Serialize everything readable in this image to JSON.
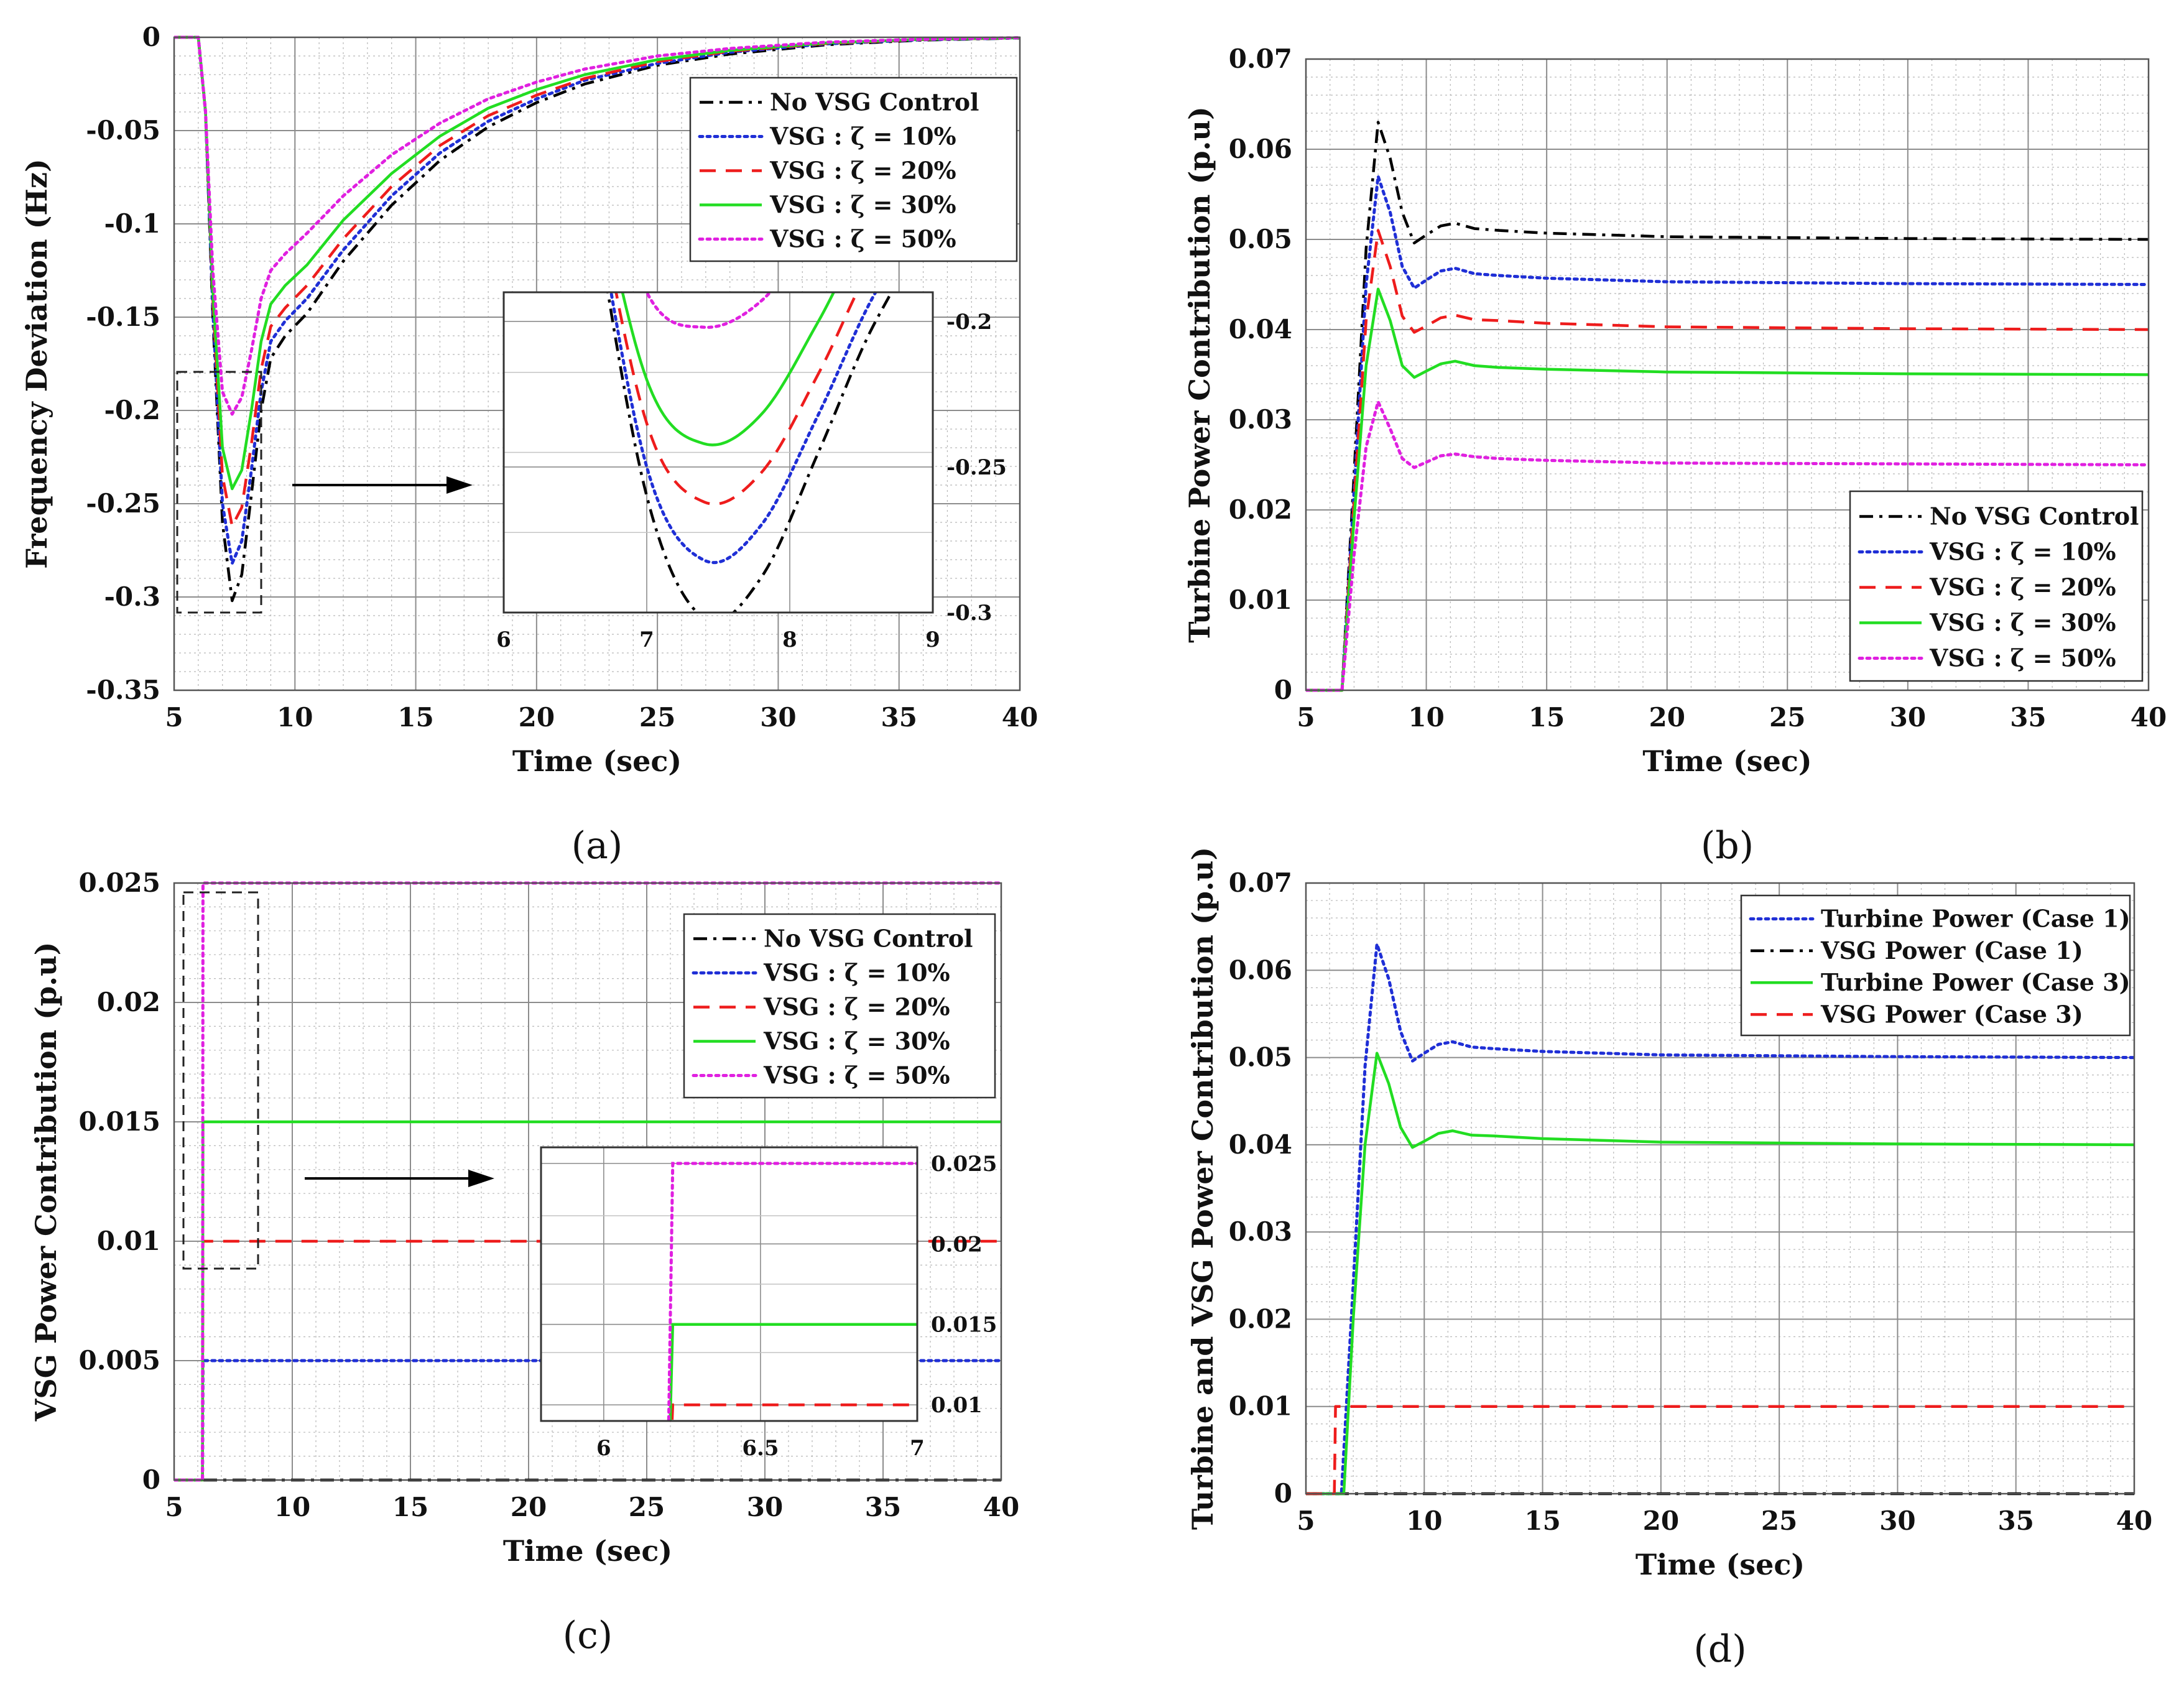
{
  "colors": {
    "no_vsg": "#000000",
    "zeta10": "#1f2fd6",
    "zeta20": "#ee1c1c",
    "zeta30": "#22dd22",
    "zeta50": "#e020e0"
  },
  "chart_data": [
    {
      "id": "a",
      "type": "line",
      "caption": "(a)",
      "xlabel": "Time (sec)",
      "ylabel": "Frequency Deviation (Hz)",
      "xlim": [
        5,
        40
      ],
      "ylim": [
        -0.35,
        0
      ],
      "xticks": [
        5,
        10,
        15,
        20,
        25,
        30,
        35,
        40
      ],
      "yticks": [
        -0.35,
        -0.3,
        -0.25,
        -0.2,
        -0.15,
        -0.1,
        -0.05,
        0
      ],
      "ytick_labels": [
        "-0.35",
        "-0.3",
        "-0.25",
        "-0.2",
        "-0.15",
        "-0.1",
        "-0.05",
        "0"
      ],
      "grid": true,
      "legend": "top-right",
      "series": [
        {
          "name": "No VSG Control",
          "color": "#000000",
          "style": "dashdot",
          "x": [
            5,
            6,
            6.3,
            6.6,
            7,
            7.4,
            7.8,
            8.2,
            8.6,
            9,
            9.6,
            10.5,
            12,
            14,
            16,
            18,
            20,
            22,
            25,
            28,
            32,
            36,
            40
          ],
          "y": [
            0,
            0,
            -0.04,
            -0.15,
            -0.26,
            -0.302,
            -0.288,
            -0.245,
            -0.2,
            -0.172,
            -0.16,
            -0.148,
            -0.12,
            -0.09,
            -0.066,
            -0.048,
            -0.035,
            -0.025,
            -0.015,
            -0.009,
            -0.004,
            -0.0015,
            -0.0004
          ]
        },
        {
          "name": "VSG : ζ = 10%",
          "color": "#1f2fd6",
          "style": "dotted",
          "x": [
            5,
            6,
            6.3,
            6.6,
            7,
            7.4,
            7.8,
            8.2,
            8.6,
            9,
            9.6,
            10.5,
            12,
            14,
            16,
            18,
            20,
            22,
            25,
            28,
            32,
            36,
            40
          ],
          "y": [
            0,
            0,
            -0.04,
            -0.145,
            -0.25,
            -0.282,
            -0.27,
            -0.232,
            -0.19,
            -0.163,
            -0.152,
            -0.14,
            -0.114,
            -0.085,
            -0.062,
            -0.045,
            -0.033,
            -0.023,
            -0.014,
            -0.008,
            -0.0035,
            -0.0013,
            -0.0003
          ]
        },
        {
          "name": "VSG : ζ = 20%",
          "color": "#ee1c1c",
          "style": "dashed",
          "x": [
            5,
            6,
            6.3,
            6.6,
            7,
            7.4,
            7.8,
            8.2,
            8.6,
            9,
            9.6,
            10.5,
            12,
            14,
            16,
            18,
            20,
            22,
            25,
            28,
            32,
            36,
            40
          ],
          "y": [
            0,
            0,
            -0.04,
            -0.14,
            -0.235,
            -0.262,
            -0.252,
            -0.218,
            -0.178,
            -0.155,
            -0.145,
            -0.133,
            -0.108,
            -0.08,
            -0.058,
            -0.042,
            -0.031,
            -0.022,
            -0.013,
            -0.0075,
            -0.0033,
            -0.0012,
            -0.0003
          ]
        },
        {
          "name": "VSG : ζ = 30%",
          "color": "#22dd22",
          "style": "solid",
          "x": [
            5,
            6,
            6.3,
            6.6,
            7,
            7.4,
            7.8,
            8.2,
            8.6,
            9,
            9.6,
            10.5,
            12,
            14,
            16,
            18,
            20,
            22,
            25,
            28,
            32,
            36,
            40
          ],
          "y": [
            0,
            0,
            -0.04,
            -0.135,
            -0.22,
            -0.242,
            -0.232,
            -0.2,
            -0.163,
            -0.143,
            -0.133,
            -0.122,
            -0.098,
            -0.073,
            -0.053,
            -0.038,
            -0.028,
            -0.02,
            -0.012,
            -0.007,
            -0.003,
            -0.0011,
            -0.0003
          ]
        },
        {
          "name": "VSG : ζ = 50%",
          "color": "#e020e0",
          "style": "dotted",
          "x": [
            5,
            6,
            6.3,
            6.6,
            7,
            7.4,
            7.8,
            8.2,
            8.6,
            9,
            9.6,
            10.5,
            12,
            14,
            16,
            18,
            20,
            22,
            25,
            28,
            32,
            36,
            40
          ],
          "y": [
            0,
            0,
            -0.04,
            -0.125,
            -0.19,
            -0.202,
            -0.193,
            -0.168,
            -0.14,
            -0.125,
            -0.116,
            -0.105,
            -0.085,
            -0.063,
            -0.046,
            -0.033,
            -0.024,
            -0.017,
            -0.01,
            -0.006,
            -0.0026,
            -0.001,
            -0.0002
          ]
        }
      ],
      "inset": {
        "xlim": [
          6,
          9
        ],
        "ylim": [
          -0.3,
          -0.19
        ],
        "xticks": [
          6,
          7,
          8,
          9
        ],
        "yticks": [
          -0.3,
          -0.25,
          -0.2
        ],
        "ytick_labels": [
          "-0.3",
          "-0.25",
          "-0.2"
        ],
        "yticks_side": "right"
      }
    },
    {
      "id": "b",
      "type": "line",
      "caption": "(b)",
      "xlabel": "Time (sec)",
      "ylabel": "Turbine Power Contribution (p.u)",
      "xlim": [
        5,
        40
      ],
      "ylim": [
        0,
        0.07
      ],
      "xticks": [
        5,
        10,
        15,
        20,
        25,
        30,
        35,
        40
      ],
      "yticks": [
        0,
        0.01,
        0.02,
        0.03,
        0.04,
        0.05,
        0.06,
        0.07
      ],
      "ytick_labels": [
        "0",
        "0.01",
        "0.02",
        "0.03",
        "0.04",
        "0.05",
        "0.06",
        "0.07"
      ],
      "grid": true,
      "legend": "bottom-right",
      "series": [
        {
          "name": "No VSG Control",
          "color": "#000000",
          "style": "dashdot",
          "x": [
            5,
            6.5,
            7,
            7.5,
            8,
            8.5,
            9,
            9.5,
            10,
            10.6,
            11.2,
            12,
            13,
            15,
            20,
            30,
            40
          ],
          "y": [
            0,
            0,
            0.024,
            0.049,
            0.063,
            0.059,
            0.053,
            0.0496,
            0.0505,
            0.0515,
            0.0518,
            0.0512,
            0.051,
            0.0507,
            0.0503,
            0.0501,
            0.05
          ]
        },
        {
          "name": "VSG : ζ = 10%",
          "color": "#1f2fd6",
          "style": "dotted",
          "x": [
            5,
            6.5,
            7,
            7.5,
            8,
            8.5,
            9,
            9.5,
            10,
            10.6,
            11.2,
            12,
            13,
            15,
            20,
            30,
            40
          ],
          "y": [
            0,
            0,
            0.022,
            0.045,
            0.057,
            0.053,
            0.047,
            0.0446,
            0.0455,
            0.0465,
            0.0468,
            0.0462,
            0.046,
            0.0457,
            0.0453,
            0.0451,
            0.045
          ]
        },
        {
          "name": "VSG : ζ = 20%",
          "color": "#ee1c1c",
          "style": "dashed",
          "x": [
            5,
            6.5,
            7,
            7.5,
            8,
            8.5,
            9,
            9.5,
            10,
            10.6,
            11.2,
            12,
            13,
            15,
            20,
            30,
            40
          ],
          "y": [
            0,
            0,
            0.021,
            0.041,
            0.051,
            0.047,
            0.0415,
            0.0397,
            0.0404,
            0.0413,
            0.0416,
            0.0411,
            0.041,
            0.0407,
            0.0403,
            0.0401,
            0.04
          ]
        },
        {
          "name": "VSG : ζ = 30%",
          "color": "#22dd22",
          "style": "solid",
          "x": [
            5,
            6.5,
            7,
            7.5,
            8,
            8.5,
            9,
            9.5,
            10,
            10.6,
            11.2,
            12,
            13,
            15,
            20,
            30,
            40
          ],
          "y": [
            0,
            0,
            0.019,
            0.036,
            0.0445,
            0.041,
            0.036,
            0.0347,
            0.0354,
            0.0362,
            0.0365,
            0.036,
            0.0358,
            0.0356,
            0.0353,
            0.0351,
            0.035
          ]
        },
        {
          "name": "VSG : ζ = 50%",
          "color": "#e020e0",
          "style": "dotted",
          "x": [
            5,
            6.5,
            7,
            7.5,
            8,
            8.5,
            9,
            9.5,
            10,
            10.6,
            11.2,
            12,
            13,
            15,
            20,
            30,
            40
          ],
          "y": [
            0,
            0,
            0.015,
            0.027,
            0.032,
            0.029,
            0.0257,
            0.0247,
            0.0253,
            0.026,
            0.0262,
            0.0259,
            0.0257,
            0.0255,
            0.0252,
            0.0251,
            0.025
          ]
        }
      ]
    },
    {
      "id": "c",
      "type": "line",
      "caption": "(c)",
      "xlabel": "Time (sec)",
      "ylabel": "VSG Power Contribution (p.u)",
      "xlim": [
        5,
        40
      ],
      "ylim": [
        0,
        0.025
      ],
      "xticks": [
        5,
        10,
        15,
        20,
        25,
        30,
        35,
        40
      ],
      "yticks": [
        0,
        0.005,
        0.01,
        0.015,
        0.02,
        0.025
      ],
      "ytick_labels": [
        "0",
        "0.005",
        "0.01",
        "0.015",
        "0.02",
        "0.025"
      ],
      "grid": true,
      "legend": "top-right",
      "series": [
        {
          "name": "No VSG Control",
          "color": "#000000",
          "style": "dashdot",
          "x": [
            5,
            40
          ],
          "y": [
            0,
            0
          ]
        },
        {
          "name": "VSG : ζ = 10%",
          "color": "#1f2fd6",
          "style": "dotted",
          "x": [
            5,
            6.2,
            6.22,
            40
          ],
          "y": [
            0,
            0,
            0.005,
            0.005
          ]
        },
        {
          "name": "VSG : ζ = 20%",
          "color": "#ee1c1c",
          "style": "dashed",
          "x": [
            5,
            6.2,
            6.22,
            40
          ],
          "y": [
            0,
            0,
            0.01,
            0.01
          ]
        },
        {
          "name": "VSG : ζ = 30%",
          "color": "#22dd22",
          "style": "solid",
          "x": [
            5,
            6.2,
            6.22,
            40
          ],
          "y": [
            0,
            0,
            0.015,
            0.015
          ]
        },
        {
          "name": "VSG : ζ = 50%",
          "color": "#e020e0",
          "style": "dotted",
          "x": [
            5,
            6.2,
            6.22,
            40
          ],
          "y": [
            0,
            0,
            0.025,
            0.025
          ]
        }
      ],
      "inset": {
        "xlim": [
          5.8,
          7
        ],
        "ylim": [
          0.009,
          0.026
        ],
        "xticks": [
          6,
          6.5,
          7
        ],
        "xtick_labels": [
          "6",
          "6.5",
          "7"
        ],
        "yticks": [
          0.01,
          0.015,
          0.02,
          0.025
        ],
        "ytick_labels": [
          "0.01",
          "0.015",
          "0.02",
          "0.025"
        ],
        "yticks_side": "right"
      }
    },
    {
      "id": "d",
      "type": "line",
      "caption": "(d)",
      "xlabel": "Time (sec)",
      "ylabel": "Turbine and VSG Power Contribution (p.u)",
      "xlim": [
        5,
        40
      ],
      "ylim": [
        0,
        0.07
      ],
      "xticks": [
        5,
        10,
        15,
        20,
        25,
        30,
        35,
        40
      ],
      "yticks": [
        0,
        0.01,
        0.02,
        0.03,
        0.04,
        0.05,
        0.06,
        0.07
      ],
      "ytick_labels": [
        "0",
        "0.01",
        "0.02",
        "0.03",
        "0.04",
        "0.05",
        "0.06",
        "0.07"
      ],
      "grid": true,
      "legend": "top-right",
      "series": [
        {
          "name": "Turbine Power (Case 1)",
          "color": "#1f2fd6",
          "style": "dotted",
          "x": [
            5,
            6.5,
            7,
            7.5,
            8,
            8.5,
            9,
            9.5,
            10,
            10.6,
            11.2,
            12,
            13,
            15,
            20,
            30,
            40
          ],
          "y": [
            0,
            0,
            0.024,
            0.049,
            0.063,
            0.059,
            0.053,
            0.0496,
            0.0505,
            0.0515,
            0.0518,
            0.0512,
            0.051,
            0.0507,
            0.0503,
            0.0501,
            0.05
          ]
        },
        {
          "name": "VSG Power (Case 1)",
          "color": "#000000",
          "style": "dashdot",
          "x": [
            5,
            40
          ],
          "y": [
            0,
            0
          ]
        },
        {
          "name": "Turbine Power (Case 3)",
          "color": "#22dd22",
          "style": "solid",
          "x": [
            5,
            6.6,
            7,
            7.5,
            8,
            8.5,
            9,
            9.5,
            10,
            10.6,
            11.2,
            12,
            13,
            15,
            20,
            30,
            40
          ],
          "y": [
            0,
            0,
            0.02,
            0.04,
            0.0505,
            0.047,
            0.042,
            0.0397,
            0.0404,
            0.0413,
            0.0416,
            0.0411,
            0.041,
            0.0407,
            0.0403,
            0.0401,
            0.04
          ]
        },
        {
          "name": "VSG Power (Case 3)",
          "color": "#ee1c1c",
          "style": "dashed",
          "x": [
            5,
            6.2,
            6.25,
            40
          ],
          "y": [
            0,
            0,
            0.01,
            0.01
          ]
        }
      ]
    }
  ]
}
